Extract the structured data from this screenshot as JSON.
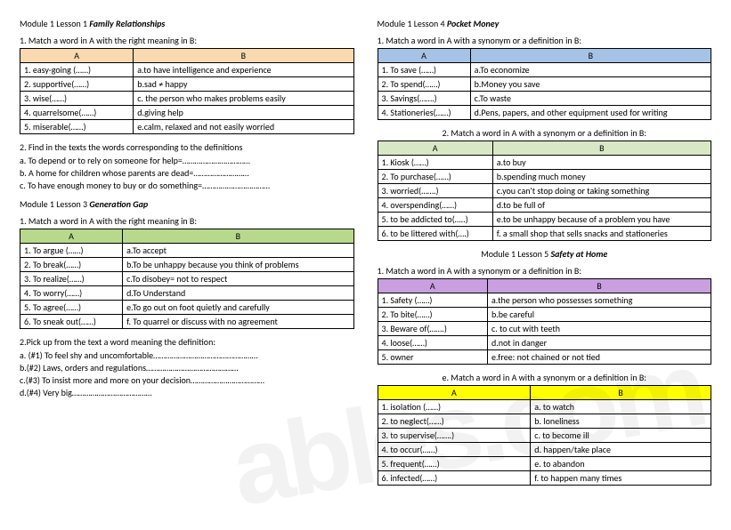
{
  "left": {
    "s1": {
      "title_pre": "Module 1 Lesson 1 ",
      "title_bold": "Family Relationships",
      "instr": "1.  Match a word in A with the right meaning in B:",
      "header_color": "#f8d9b0",
      "hA": "A",
      "hB": "B",
      "rows": [
        {
          "a": "1.  easy-going (……)",
          "b": "a.to have intelligence and experience"
        },
        {
          "a": "2.  supportive(……)",
          "b": "b.sad ≠ happy"
        },
        {
          "a": "3.  wise(……)",
          "b": "c. the person who makes problems easily"
        },
        {
          "a": "4.  quarrelsome(……)",
          "b": "d.giving help"
        },
        {
          "a": "5.  miserable(……)",
          "b": "e.calm, relaxed and not easily worried"
        }
      ]
    },
    "s2": {
      "instr": "2.  Find in the texts the words corresponding to the definitions",
      "lines": [
        "a.  To depend or to rely on someone for help=……………………………",
        "b.  A home for children whose parents are dead=………………………",
        "c.  To have enough money to buy or do something=……………………………"
      ]
    },
    "s3": {
      "title_pre": "Module 1 Lesson 3 ",
      "title_bold": "Generation Gap",
      "instr": "1.  Match a word in A with the right meaning in B:",
      "header_color": "#b8d98c",
      "hA": "A",
      "hB": "B",
      "rows": [
        {
          "a": "1.  To argue (……)",
          "b": "a.To accept"
        },
        {
          "a": "2.  To break(……)",
          "b": "b.To be unhappy because you think of problems"
        },
        {
          "a": "3.  To realize(……)",
          "b": "c.To disobey= not to respect"
        },
        {
          "a": "4.  To worry(……)",
          "b": "d.To Understand"
        },
        {
          "a": "5.  To agree(……)",
          "b": "e.To go out on foot quietly and carefully"
        },
        {
          "a": "6.  To sneak out(……)",
          "b": "f. To quarrel or discuss with no agreement"
        }
      ]
    },
    "s4": {
      "instr": "2.Pick up from the text a word meaning the definition:",
      "lines": [
        "a.  (#1) To feel shy and uncomfortable……………………………………………",
        "b.(#2) Laws, orders and regulations………………………………………",
        "c.(#3) To insist more and more on your decision………………………………",
        "d.(#4) Very big…………………………………"
      ]
    }
  },
  "right": {
    "s1": {
      "title_pre": "Module 1 Lesson 4 ",
      "title_bold": "Pocket Money",
      "instr": "1.  Match a word in A with a synonym or a definition in B:",
      "header_color": "#a6c3e6",
      "hA": "A",
      "hB": "B",
      "rows": [
        {
          "a": "1.  To save (……)",
          "b": "a.To economize"
        },
        {
          "a": "2.  To spend(……)",
          "b": "b.Money you save"
        },
        {
          "a": "3.  Savings(…….)",
          "b": "c.To waste"
        },
        {
          "a": "4.  Stationeries(……)",
          "b": "d.Pens, papers, and other equipment used for writing"
        }
      ]
    },
    "s2": {
      "instr": "2.   Match a word in A with a synonym or a definition in B:",
      "header_color": "#d9e8c4",
      "hA": "A",
      "hB": "B",
      "rows": [
        {
          "a": "1.  Kiosk (……)",
          "b": "a.to buy"
        },
        {
          "a": "2.  To purchase(……)",
          "b": "b.spending much money"
        },
        {
          "a": "3.  worried(…….)",
          "b": "c.you can't stop doing or taking something"
        },
        {
          "a": "4.  overspending(……)",
          "b": "d.to be full of"
        },
        {
          "a": "5.  to be addicted to(…..)",
          "b": "e.to be unhappy because of a problem you have"
        },
        {
          "a": "6.  to be littered with(….)",
          "b": "f. a small shop that sells snacks and stationeries"
        }
      ]
    },
    "s3": {
      "title_pre": "Module 1 Lesson 5 ",
      "title_bold": "Safety at Home",
      "instr": "1.  Match a word in A with a synonym or a definition in B:",
      "header_color": "#c99fe0",
      "hA": "A",
      "hB": "B",
      "rows": [
        {
          "a": "1.  Safety (……)",
          "b": "a.the person who possesses something"
        },
        {
          "a": "2.  To bite(……)",
          "b": "b.be careful"
        },
        {
          "a": "3.  Beware of(…….)",
          "b": "c. to cut with teeth"
        },
        {
          "a": "4.  loose(……)",
          "b": "d.not in danger"
        },
        {
          "a": "5.  owner",
          "b": "e.free: not chained or not tied"
        }
      ]
    },
    "s4": {
      "instr": "e.   Match a word in A with a synonym or a definition in B:",
      "header_color": "#ffff00",
      "hA": "A",
      "hB": "B",
      "rows": [
        {
          "a": "1.  isolation (……)",
          "b": "a.  to watch"
        },
        {
          "a": "2.  to neglect(……)",
          "b": "b.  loneliness"
        },
        {
          "a": "3.  to supervise(…….)",
          "b": "c.  to become ill"
        },
        {
          "a": "4.  to occur(……)",
          "b": "d.  happen/take place"
        },
        {
          "a": "5.  frequent(……)",
          "b": "e.  to abandon"
        },
        {
          "a": "6.  infected(……)",
          "b": "f.   to happen many times"
        }
      ]
    }
  },
  "watermark": "ables.com"
}
